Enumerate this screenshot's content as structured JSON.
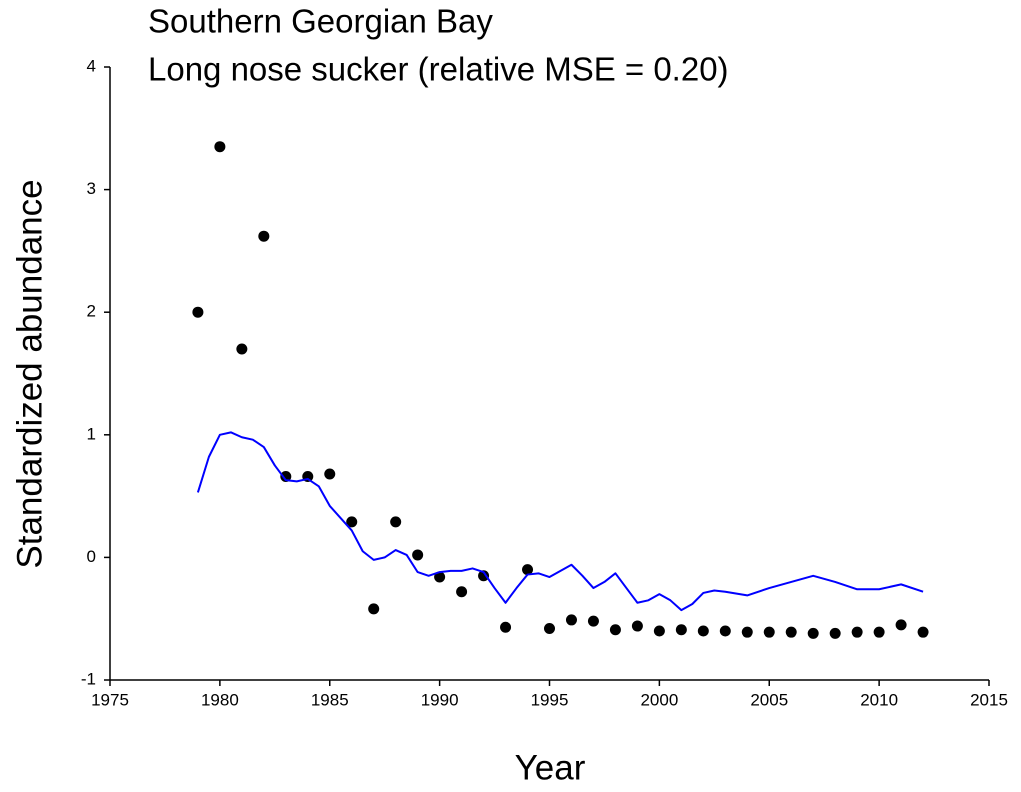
{
  "chart_data": {
    "type": "scatter",
    "title": "Southern Georgian Bay",
    "subtitle": "Long nose sucker (relative MSE = 0.20)",
    "x_label": "Year",
    "y_label": "Standardized abundance",
    "xlim": [
      1975,
      2015
    ],
    "xticks": [
      1975,
      1980,
      1985,
      1990,
      1995,
      2000,
      2005,
      2010,
      2015
    ],
    "ylim": [
      -1,
      4
    ],
    "yticks": [
      -1,
      0,
      1,
      2,
      3,
      4
    ],
    "series": [
      {
        "type": "scatter",
        "color": "#000000",
        "x": [
          1979,
          1980,
          1981,
          1982,
          1983,
          1984,
          1985,
          1986,
          1987,
          1988,
          1989,
          1990,
          1991,
          1992,
          1993,
          1994,
          1995,
          1996,
          1997,
          1998,
          1999,
          2000,
          2001,
          2002,
          2003,
          2004,
          2005,
          2006,
          2007,
          2008,
          2009,
          2010,
          2011,
          2012
        ],
        "values": [
          2.0,
          3.35,
          1.7,
          2.62,
          0.66,
          0.66,
          0.68,
          0.29,
          -0.42,
          0.29,
          0.02,
          -0.16,
          -0.28,
          -0.15,
          -0.57,
          -0.1,
          -0.58,
          -0.51,
          -0.52,
          -0.59,
          -0.56,
          -0.6,
          -0.59,
          -0.6,
          -0.6,
          -0.61,
          -0.61,
          -0.61,
          -0.62,
          -0.62,
          -0.61,
          -0.61,
          -0.55,
          -0.61
        ]
      },
      {
        "type": "line",
        "color": "#0000ff",
        "x": [
          1979,
          1979.5,
          1980,
          1980.5,
          1981,
          1981.5,
          1982,
          1982.5,
          1983,
          1983.5,
          1984,
          1984.5,
          1985,
          1985.5,
          1986,
          1986.5,
          1987,
          1987.5,
          1988,
          1988.5,
          1989,
          1989.5,
          1990,
          1990.5,
          1991,
          1991.5,
          1992,
          1992.5,
          1993,
          1993.5,
          1994,
          1994.5,
          1995,
          1995.5,
          1996,
          1996.5,
          1997,
          1997.5,
          1998,
          1998.5,
          1999,
          1999.5,
          2000,
          2000.5,
          2001,
          2001.5,
          2002,
          2002.5,
          2003,
          2004,
          2005,
          2006,
          2007,
          2008,
          2009,
          2010,
          2011,
          2012
        ],
        "values": [
          0.53,
          0.82,
          1.0,
          1.02,
          0.98,
          0.96,
          0.9,
          0.75,
          0.63,
          0.62,
          0.64,
          0.58,
          0.42,
          0.32,
          0.22,
          0.05,
          -0.02,
          0.0,
          0.06,
          0.02,
          -0.12,
          -0.15,
          -0.12,
          -0.11,
          -0.11,
          -0.09,
          -0.12,
          -0.25,
          -0.37,
          -0.25,
          -0.14,
          -0.13,
          -0.16,
          -0.11,
          -0.06,
          -0.15,
          -0.25,
          -0.2,
          -0.13,
          -0.25,
          -0.37,
          -0.35,
          -0.3,
          -0.35,
          -0.43,
          -0.38,
          -0.29,
          -0.27,
          -0.28,
          -0.31,
          -0.25,
          -0.2,
          -0.15,
          -0.2,
          -0.26,
          -0.26,
          -0.22,
          -0.28
        ]
      }
    ]
  }
}
